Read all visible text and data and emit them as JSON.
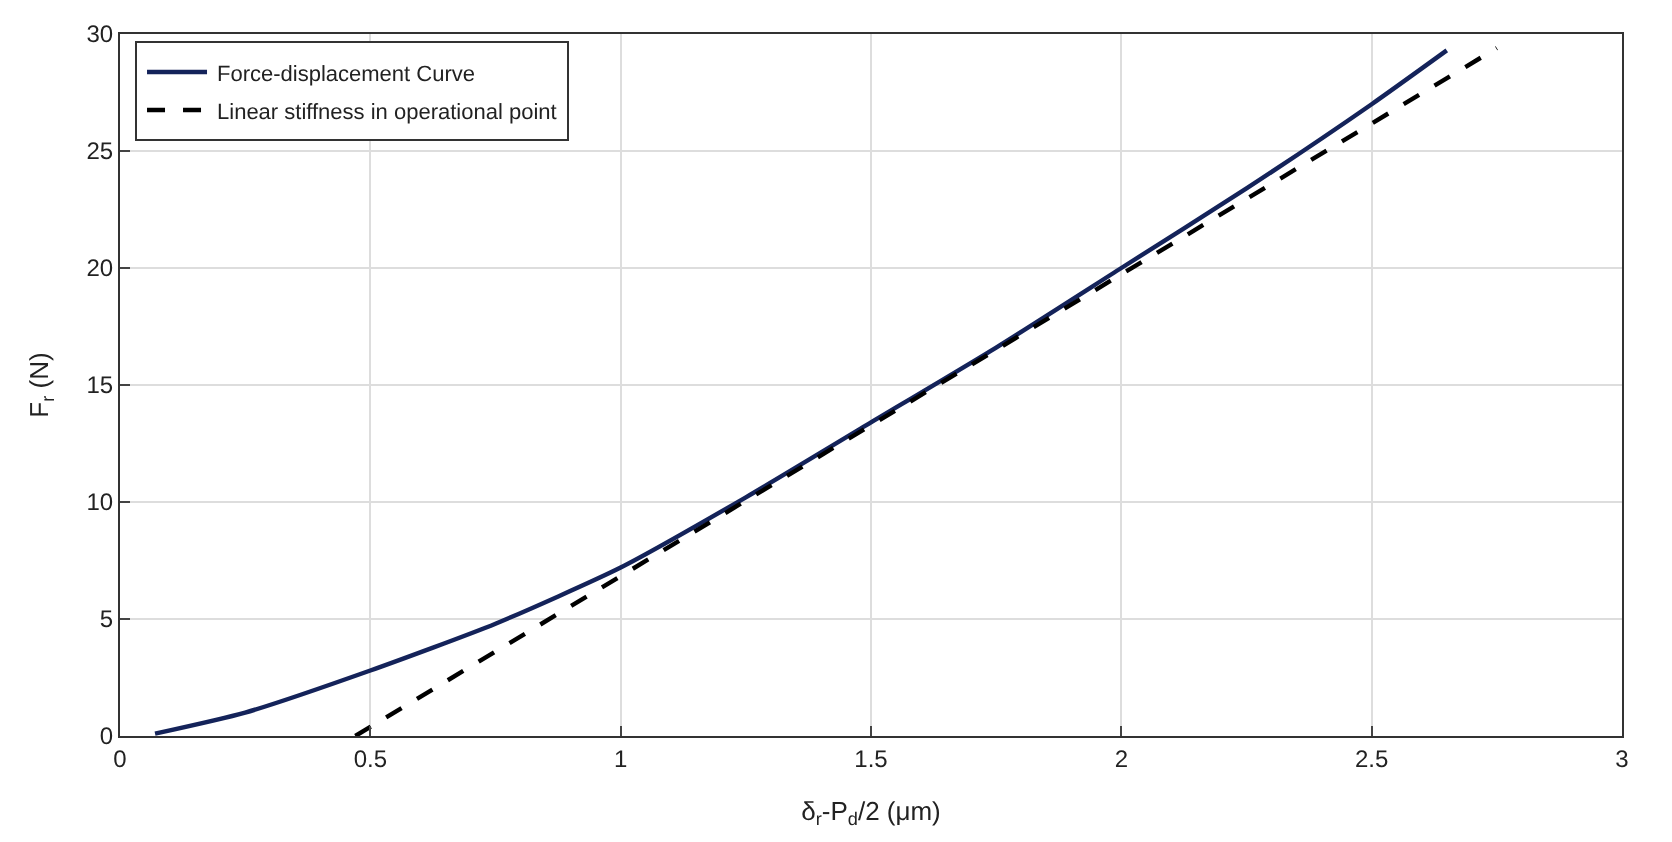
{
  "chart_data": {
    "type": "line",
    "xlabel": "δ$_{r}$-P$_{d}$/2 (μm)",
    "ylabel": "F$_{r}$ (N)",
    "xlim": [
      0,
      3
    ],
    "ylim": [
      0,
      30
    ],
    "xticks": [
      0,
      0.5,
      1,
      1.5,
      2,
      2.5,
      3
    ],
    "yticks": [
      0,
      5,
      10,
      15,
      20,
      25,
      30
    ],
    "grid": true,
    "legend": "top left",
    "marker": "none",
    "series": [
      {
        "name": "Force-displacement Curve",
        "color": "#14235a",
        "line_style": "solid",
        "x": [
          0.07,
          0.25,
          0.5,
          0.75,
          1,
          1.25,
          1.5,
          1.75,
          2,
          2.25,
          2.5,
          2.65
        ],
        "values": [
          0.1,
          1.0,
          2.8,
          4.8,
          7.2,
          10.2,
          13.4,
          16.6,
          20.0,
          23.4,
          27.0,
          29.3
        ]
      },
      {
        "name": "Linear stiffness in operational point",
        "color": "#000000",
        "line_style": "dashed",
        "x": [
          0.47,
          2.75
        ],
        "values": [
          0,
          29.4
        ]
      }
    ]
  }
}
